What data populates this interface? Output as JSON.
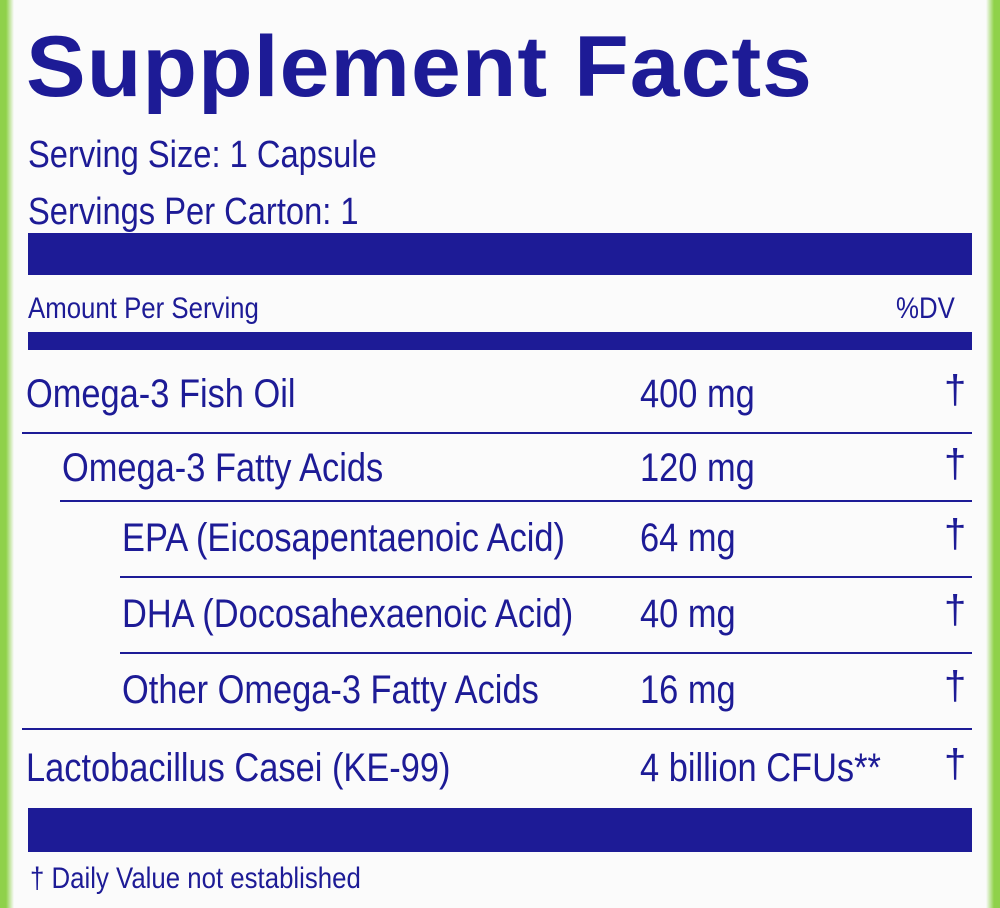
{
  "title": "Supplement Facts",
  "serving_size": "Serving Size: 1 Capsule",
  "servings_per_carton": "Servings Per Carton: 1",
  "column_headers": {
    "amount": "Amount Per Serving",
    "dv": "%DV"
  },
  "rows": [
    {
      "name": "Omega-3 Fish Oil",
      "amount": "400 mg",
      "dv": "†"
    },
    {
      "name": "Omega-3 Fatty Acids",
      "amount": "120 mg",
      "dv": "†"
    },
    {
      "name": "EPA (Eicosapentaenoic Acid)",
      "amount": "64 mg",
      "dv": "†"
    },
    {
      "name": "DHA (Docosahexaenoic Acid)",
      "amount": "40 mg",
      "dv": "†"
    },
    {
      "name": "Other Omega-3 Fatty Acids",
      "amount": "16 mg",
      "dv": "†"
    },
    {
      "name": "Lactobacillus Casei (KE-99)",
      "amount": "4 billion CFUs**",
      "dv": "†"
    }
  ],
  "footnote": "† Daily Value not established"
}
